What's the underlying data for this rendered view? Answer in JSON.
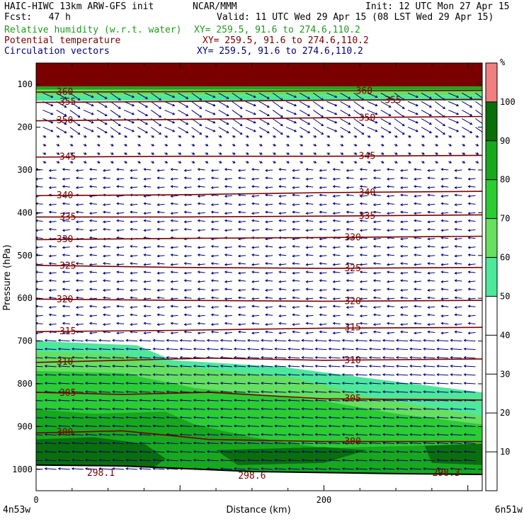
{
  "header": {
    "title": "HAIC-HIWC 13km ARW-GFS init",
    "org": "NCAR/MMM",
    "init": "Init: 12 UTC Mon 27 Apr 15",
    "fcst": "Fcst:   47 h",
    "valid": "Valid: 11 UTC Wed 29 Apr 15 (08 LST Wed 29 Apr 15)",
    "fields": [
      {
        "name": "Relative humidity (w.r.t. water)",
        "xy": "XY= 259.5, 91.6 to 274.6,110.2",
        "color": "#1f9a1f"
      },
      {
        "name": "Potential temperature",
        "xy": "XY= 259.5, 91.6 to 274.6,110.2",
        "color": "#7a0000"
      },
      {
        "name": "Circulation vectors",
        "xy": "XY= 259.5, 91.6 to 274.6,110.2",
        "color": "#00007a"
      }
    ]
  },
  "chart_data": {
    "type": "heatmap",
    "xlabel": "Distance (km)",
    "ylabel": "Pressure (hPa)",
    "x_ticks": [
      "0",
      "200"
    ],
    "x_tick_values": [
      0,
      200
    ],
    "x_end_labels": [
      "4n53w",
      "6n51w"
    ],
    "y_ticks": [
      100,
      200,
      300,
      400,
      500,
      600,
      700,
      800,
      900,
      1000
    ],
    "xlim": [
      0,
      310
    ],
    "ylim_pressure": [
      50,
      1050
    ],
    "colorbar": {
      "unit": "%",
      "levels": [
        10,
        20,
        30,
        40,
        50,
        60,
        70,
        80,
        90,
        100
      ],
      "colors": [
        "#ffffff",
        "#ffffff",
        "#ffffff",
        "#ffffff",
        "#ffffff",
        "#4de89a",
        "#66e05e",
        "#2ccc33",
        "#18a81c",
        "#0a6e0a",
        "#f08080"
      ]
    },
    "theta_contours": [
      {
        "value": 300,
        "label": "300",
        "x": [
          0,
          60,
          120,
          200,
          310
        ],
        "p": [
          915,
          910,
          930,
          935,
          935
        ]
      },
      {
        "value": 305,
        "label": "305",
        "x": [
          0,
          60,
          120,
          200,
          310
        ],
        "p": [
          820,
          825,
          820,
          835,
          838
        ]
      },
      {
        "value": 310,
        "label": "310",
        "x": [
          0,
          60,
          120,
          200,
          310
        ],
        "p": [
          750,
          745,
          740,
          745,
          742
        ]
      },
      {
        "value": 315,
        "label": "315",
        "x": [
          0,
          100,
          200,
          310
        ],
        "p": [
          678,
          675,
          670,
          668
        ]
      },
      {
        "value": 320,
        "label": "320",
        "x": [
          0,
          100,
          200,
          310
        ],
        "p": [
          602,
          605,
          607,
          605
        ]
      },
      {
        "value": 325,
        "label": "325",
        "x": [
          0,
          100,
          200,
          310
        ],
        "p": [
          523,
          528,
          530,
          528
        ]
      },
      {
        "value": 330,
        "label": "330",
        "x": [
          0,
          100,
          200,
          310
        ],
        "p": [
          463,
          460,
          458,
          455
        ]
      },
      {
        "value": 335,
        "label": "335",
        "x": [
          0,
          100,
          200,
          310
        ],
        "p": [
          410,
          410,
          408,
          405
        ]
      },
      {
        "value": 340,
        "label": "340",
        "x": [
          0,
          100,
          200,
          310
        ],
        "p": [
          360,
          358,
          353,
          350
        ]
      },
      {
        "value": 345,
        "label": "345",
        "x": [
          0,
          100,
          200,
          310
        ],
        "p": [
          270,
          268,
          268,
          266
        ]
      },
      {
        "value": 350,
        "label": "350",
        "x": [
          0,
          100,
          200,
          310
        ],
        "p": [
          185,
          182,
          178,
          175
        ]
      },
      {
        "value": 355,
        "label": "355",
        "x": [
          0,
          100,
          200,
          310
        ],
        "p": [
          142,
          140,
          137,
          135
        ]
      },
      {
        "value": 360,
        "label": "360",
        "x": [
          0,
          100,
          200,
          310
        ],
        "p": [
          118,
          117,
          115,
          114
        ]
      }
    ],
    "extra_labels": [
      {
        "text": "355",
        "x": 248,
        "p": 137
      },
      {
        "text": "360",
        "x": 228,
        "p": 115
      },
      {
        "text": "350",
        "x": 230,
        "p": 178
      },
      {
        "text": "345",
        "x": 230,
        "p": 268
      },
      {
        "text": "340",
        "x": 230,
        "p": 353
      },
      {
        "text": "335",
        "x": 230,
        "p": 408
      },
      {
        "text": "330",
        "x": 220,
        "p": 458
      },
      {
        "text": "325",
        "x": 220,
        "p": 530
      },
      {
        "text": "320",
        "x": 220,
        "p": 607
      },
      {
        "text": "315",
        "x": 220,
        "p": 668
      },
      {
        "text": "310",
        "x": 220,
        "p": 745
      },
      {
        "text": "305",
        "x": 220,
        "p": 835
      },
      {
        "text": "300",
        "x": 220,
        "p": 935
      }
    ],
    "surface_labels": [
      {
        "text": "298.1",
        "x": 45,
        "p": 1005
      },
      {
        "text": "298.6",
        "x": 150,
        "p": 1012
      },
      {
        "text": "298.3",
        "x": 285,
        "p": 1005
      }
    ],
    "surface": {
      "x": [
        0,
        60,
        150,
        250,
        310
      ],
      "p": [
        990,
        992,
        1005,
        1010,
        1012
      ]
    }
  }
}
